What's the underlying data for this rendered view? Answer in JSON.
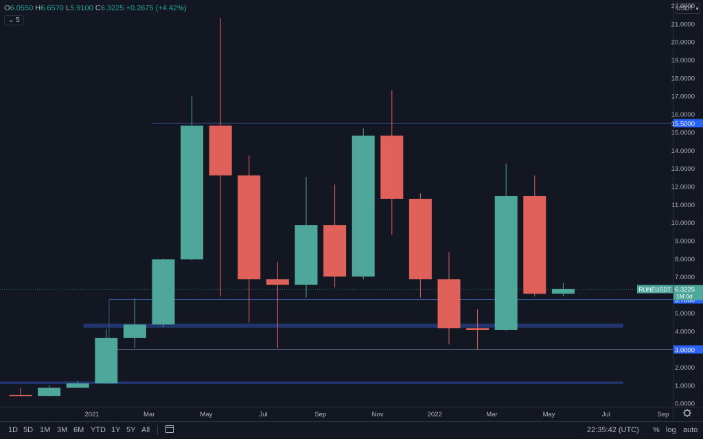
{
  "header": {
    "o_label": "O",
    "o_value": "6.0550",
    "h_label": "H",
    "h_value": "6.6570",
    "l_label": "L",
    "l_value": "5.9100",
    "c_label": "C",
    "c_value": "6.3225",
    "change": "+0.2675 (+4.42%)",
    "indicator_badge": "5",
    "currency": "USDT"
  },
  "price_tag": {
    "symbol": "RUNEUSDT",
    "price": "6.3225",
    "countdown": "1M 0d"
  },
  "bottom_bar": {
    "timeframes": [
      "1D",
      "5D",
      "1M",
      "3M",
      "6M",
      "YTD",
      "1Y",
      "5Y",
      "All"
    ],
    "clock": "22:35:42 (UTC)",
    "percent": "%",
    "log": "log",
    "auto": "auto"
  },
  "colors": {
    "up": "#4fa69a",
    "down": "#e0605a",
    "background": "#131722",
    "zone": "#243a78",
    "level_label": "#2962ff"
  },
  "chart_data": {
    "type": "candlestick",
    "symbol": "RUNEUSDT",
    "interval": "1M",
    "ylim": [
      -0.2,
      22.3
    ],
    "y_ticks": [
      "0.0000",
      "1.0000",
      "2.0000",
      "3.0000",
      "4.0000",
      "5.0000",
      "6.0000",
      "7.0000",
      "8.0000",
      "9.0000",
      "10.0000",
      "11.0000",
      "12.0000",
      "13.0000",
      "14.0000",
      "15.0000",
      "16.0000",
      "17.0000",
      "18.0000",
      "19.0000",
      "20.0000",
      "21.0000",
      "22.0000"
    ],
    "x_labels": [
      {
        "i": 2.5,
        "label": "2021"
      },
      {
        "i": 4.5,
        "label": "Mar"
      },
      {
        "i": 6.5,
        "label": "May"
      },
      {
        "i": 8.5,
        "label": "Jul"
      },
      {
        "i": 10.5,
        "label": "Sep"
      },
      {
        "i": 12.5,
        "label": "Nov"
      },
      {
        "i": 14.5,
        "label": "2022"
      },
      {
        "i": 16.5,
        "label": "Mar"
      },
      {
        "i": 18.5,
        "label": "May"
      },
      {
        "i": 20.5,
        "label": "Jul"
      },
      {
        "i": 22.5,
        "label": "Sep"
      }
    ],
    "candles": [
      {
        "o": 0.45,
        "h": 0.85,
        "l": 0.4,
        "c": 0.4
      },
      {
        "o": 0.4,
        "h": 1.0,
        "l": 0.38,
        "c": 0.85
      },
      {
        "o": 0.85,
        "h": 1.25,
        "l": 0.82,
        "c": 1.1
      },
      {
        "o": 1.1,
        "h": 4.1,
        "l": 1.05,
        "c": 3.6
      },
      {
        "o": 3.6,
        "h": 5.8,
        "l": 3.05,
        "c": 4.35
      },
      {
        "o": 4.35,
        "h": 8.0,
        "l": 4.2,
        "c": 7.95
      },
      {
        "o": 7.95,
        "h": 17.0,
        "l": 7.9,
        "c": 15.35
      },
      {
        "o": 15.35,
        "h": 21.3,
        "l": 5.9,
        "c": 12.6
      },
      {
        "o": 12.6,
        "h": 13.7,
        "l": 4.45,
        "c": 6.85
      },
      {
        "o": 6.85,
        "h": 7.8,
        "l": 3.05,
        "c": 6.55
      },
      {
        "o": 6.55,
        "h": 12.5,
        "l": 5.85,
        "c": 9.85
      },
      {
        "o": 9.85,
        "h": 12.1,
        "l": 6.4,
        "c": 7.0
      },
      {
        "o": 7.0,
        "h": 15.2,
        "l": 6.85,
        "c": 14.8
      },
      {
        "o": 14.8,
        "h": 17.3,
        "l": 9.3,
        "c": 11.3
      },
      {
        "o": 11.3,
        "h": 11.6,
        "l": 5.85,
        "c": 6.85
      },
      {
        "o": 6.85,
        "h": 8.35,
        "l": 3.25,
        "c": 4.15
      },
      {
        "o": 4.15,
        "h": 5.2,
        "l": 2.95,
        "c": 4.05
      },
      {
        "o": 4.05,
        "h": 13.25,
        "l": 4.0,
        "c": 11.45
      },
      {
        "o": 11.45,
        "h": 12.6,
        "l": 5.9,
        "c": 6.05
      },
      {
        "o": 6.055,
        "h": 6.657,
        "l": 5.91,
        "c": 6.3225
      }
    ],
    "levels": [
      {
        "value": 15.5,
        "label": "15.5000"
      },
      {
        "value": 5.76,
        "label": "5.7600"
      },
      {
        "value": 3.0,
        "label": "3.0000"
      }
    ],
    "zones": [
      {
        "from": 4.17,
        "to": 4.4
      },
      {
        "from": 1.05,
        "to": 1.2
      }
    ],
    "last_price": 6.3225
  }
}
